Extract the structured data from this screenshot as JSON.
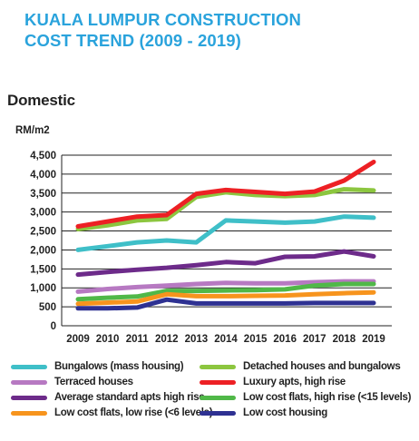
{
  "title_line1": "KUALA LUMPUR CONSTRUCTION",
  "title_line2": "COST TREND (2009 - 2019)",
  "chart_data": {
    "type": "line",
    "title": "KUALA LUMPUR CONSTRUCTION COST TREND (2009 - 2019)",
    "subtitle": "Domestic",
    "ylabel": "RM/m2",
    "xlabel": "",
    "ylim": [
      0,
      4500
    ],
    "yticks": [
      0,
      500,
      1000,
      1500,
      2000,
      2500,
      3000,
      3500,
      4000,
      4500
    ],
    "ytick_labels": [
      "0",
      "500",
      "1,000",
      "1,500",
      "2,000",
      "2,500",
      "3,000",
      "3,500",
      "4,000",
      "4,500"
    ],
    "x": [
      "2009",
      "2010",
      "2011",
      "2012",
      "2013",
      "2014",
      "2015",
      "2016",
      "2017",
      "2018",
      "2019"
    ],
    "grid": true,
    "legend_position": "bottom",
    "series": [
      {
        "name": "Bungalows (mass housing)",
        "color": "#3fbfc8",
        "values": [
          2000,
          2100,
          2200,
          2250,
          2200,
          2780,
          2750,
          2720,
          2750,
          2880,
          2850
        ]
      },
      {
        "name": "Detached houses and bungalows",
        "color": "#8cc63f",
        "values": [
          2550,
          2650,
          2780,
          2820,
          3400,
          3520,
          3450,
          3420,
          3450,
          3600,
          3570
        ]
      },
      {
        "name": "Terraced houses",
        "color": "#b779c2",
        "values": [
          900,
          970,
          1020,
          1060,
          1100,
          1130,
          1120,
          1120,
          1150,
          1170,
          1170
        ]
      },
      {
        "name": "Luxury apts, high rise",
        "color": "#ed2024",
        "values": [
          2620,
          2750,
          2880,
          2920,
          3480,
          3580,
          3530,
          3480,
          3540,
          3830,
          4320
        ]
      },
      {
        "name": "Average standard apts high rise",
        "color": "#6d2b8a",
        "values": [
          1350,
          1420,
          1480,
          1530,
          1600,
          1680,
          1650,
          1820,
          1830,
          1960,
          1830
        ]
      },
      {
        "name": "Low cost flats, high rise (<15 levels)",
        "color": "#50b848",
        "values": [
          700,
          740,
          770,
          920,
          920,
          930,
          940,
          960,
          1060,
          1100,
          1100
        ]
      },
      {
        "name": "Low cost flats, low rise (<6 levels)",
        "color": "#f7941d",
        "values": [
          580,
          610,
          640,
          830,
          780,
          780,
          790,
          800,
          830,
          860,
          880
        ]
      },
      {
        "name": "Low cost housing",
        "color": "#2e3192",
        "values": [
          460,
          460,
          480,
          690,
          590,
          590,
          590,
          590,
          600,
          600,
          600
        ]
      }
    ]
  }
}
